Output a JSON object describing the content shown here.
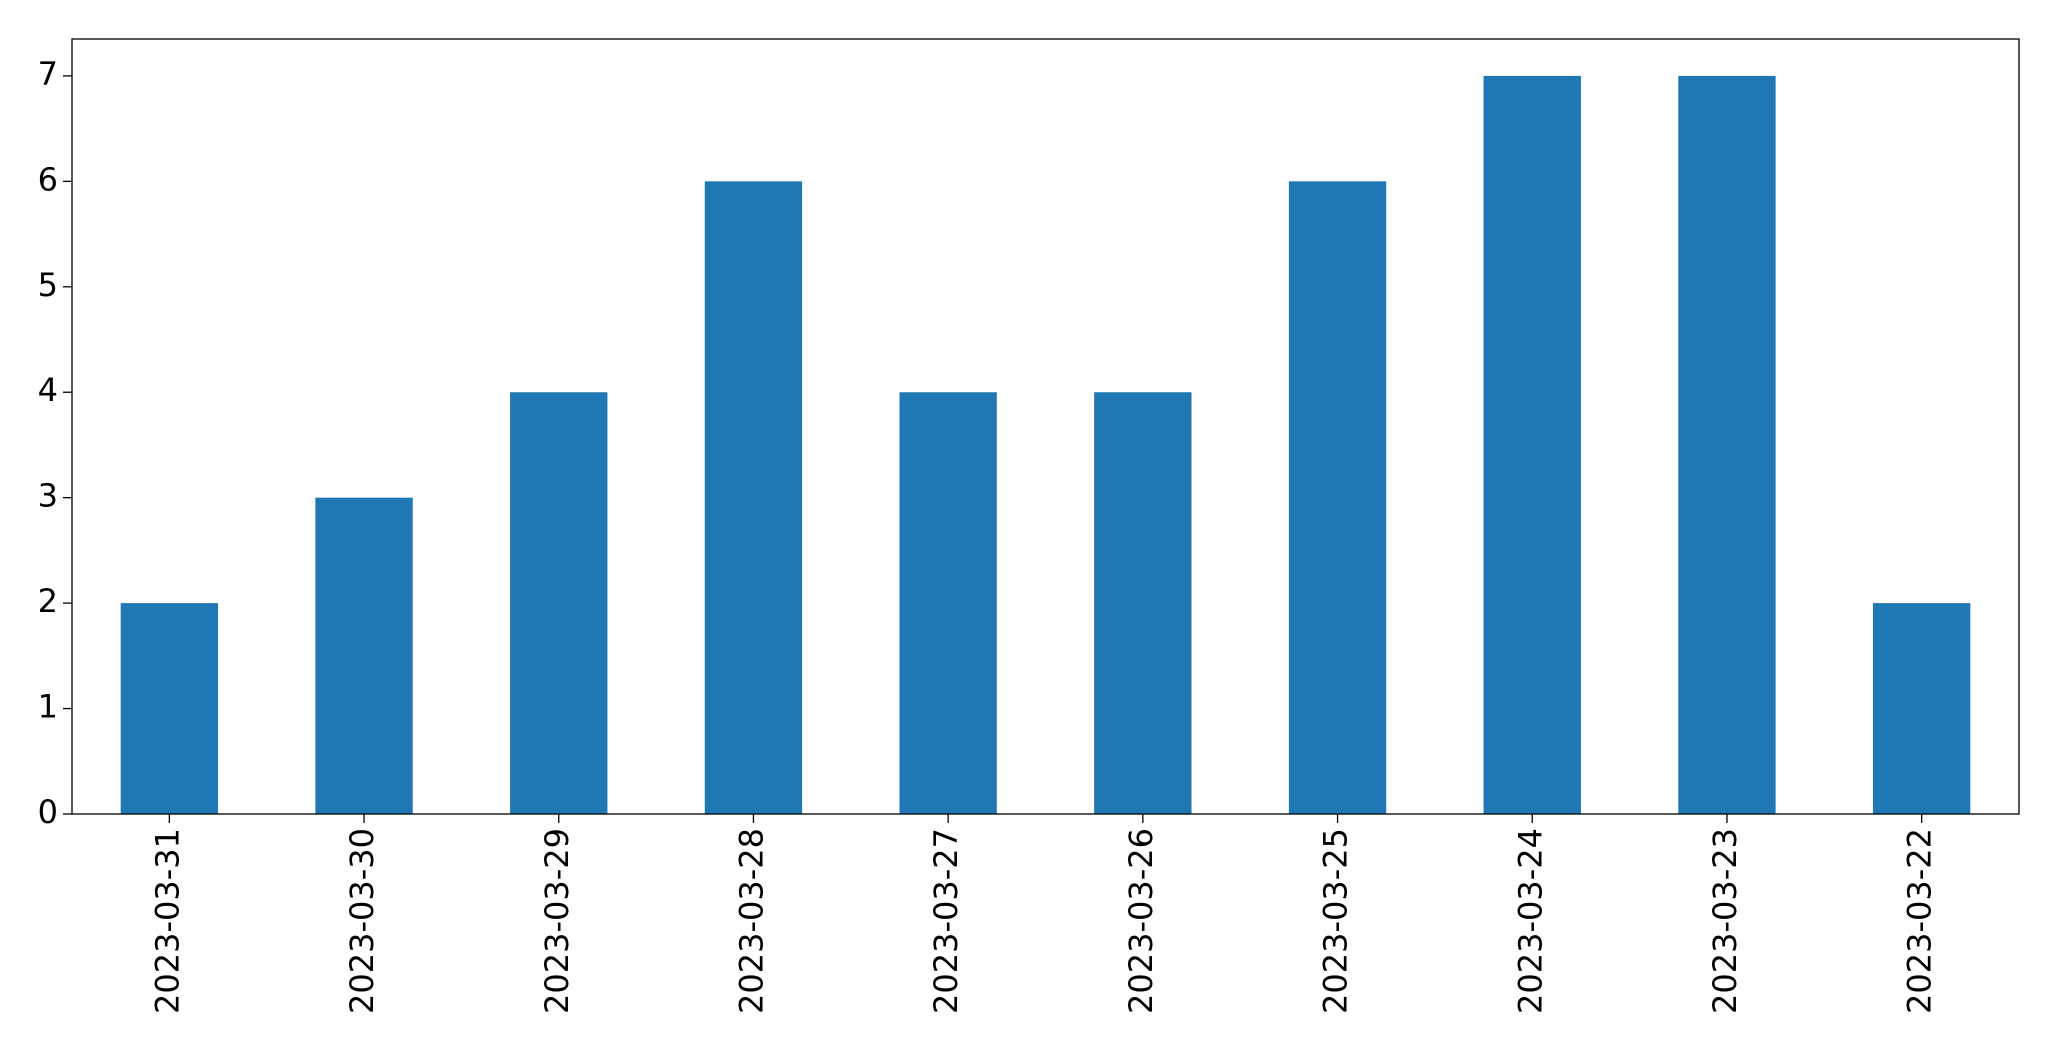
{
  "chart_data": {
    "type": "bar",
    "categories": [
      "2023-03-31",
      "2023-03-30",
      "2023-03-29",
      "2023-03-28",
      "2023-03-27",
      "2023-03-26",
      "2023-03-25",
      "2023-03-24",
      "2023-03-23",
      "2023-03-22"
    ],
    "values": [
      2,
      3,
      4,
      6,
      4,
      4,
      6,
      7,
      7,
      2
    ],
    "color": "#1f77b4",
    "ylim": [
      0,
      7.35
    ],
    "yticks": [
      0,
      1,
      2,
      3,
      4,
      5,
      6,
      7
    ],
    "grid": false
  }
}
